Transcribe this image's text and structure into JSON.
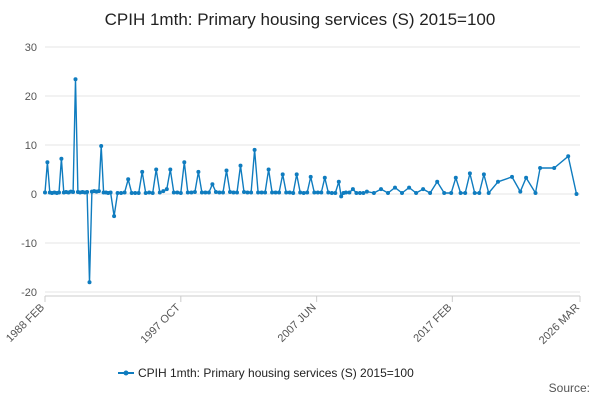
{
  "chart_data": {
    "type": "line",
    "title": "CPIH 1mth: Primary housing services (S) 2015=100",
    "xlabel": "",
    "ylabel": "",
    "ylim": [
      -20,
      30
    ],
    "yticks": [
      30,
      20,
      10,
      0,
      -10,
      -20
    ],
    "xlim": [
      1988.08,
      2026.17
    ],
    "xticks": [
      {
        "label": "1988 FEB",
        "x": 1988.08
      },
      {
        "label": "1997 OCT",
        "x": 1997.75
      },
      {
        "label": "2007 JUN",
        "x": 2007.42
      },
      {
        "label": "2017 FEB",
        "x": 2017.08
      },
      {
        "label": "2026 MAR",
        "x": 2026.17
      }
    ],
    "grid": true,
    "legend": "bottom-center",
    "color": "#0f7cbf",
    "series": [
      {
        "name": "CPIH 1mth: Primary housing services (S) 2015=100",
        "points": [
          [
            1988.08,
            0.3
          ],
          [
            1988.25,
            6.5
          ],
          [
            1988.42,
            0.3
          ],
          [
            1988.58,
            0.2
          ],
          [
            1988.75,
            0.3
          ],
          [
            1988.92,
            0.2
          ],
          [
            1989.08,
            0.3
          ],
          [
            1989.25,
            7.2
          ],
          [
            1989.42,
            0.3
          ],
          [
            1989.58,
            0.4
          ],
          [
            1989.75,
            0.3
          ],
          [
            1989.92,
            0.5
          ],
          [
            1990.08,
            0.4
          ],
          [
            1990.25,
            23.4
          ],
          [
            1990.42,
            0.4
          ],
          [
            1990.58,
            0.3
          ],
          [
            1990.75,
            0.4
          ],
          [
            1990.92,
            0.3
          ],
          [
            1991.08,
            0.4
          ],
          [
            1991.25,
            -18.0
          ],
          [
            1991.42,
            0.5
          ],
          [
            1991.58,
            0.6
          ],
          [
            1991.75,
            0.5
          ],
          [
            1991.92,
            0.6
          ],
          [
            1992.08,
            9.8
          ],
          [
            1992.25,
            0.3
          ],
          [
            1992.42,
            0.3
          ],
          [
            1992.58,
            0.2
          ],
          [
            1992.75,
            0.3
          ],
          [
            1993.0,
            -4.5
          ],
          [
            1993.25,
            0.2
          ],
          [
            1993.5,
            0.2
          ],
          [
            1993.75,
            0.3
          ],
          [
            1994.0,
            3.0
          ],
          [
            1994.25,
            0.2
          ],
          [
            1994.5,
            0.2
          ],
          [
            1994.75,
            0.2
          ],
          [
            1995.0,
            4.5
          ],
          [
            1995.25,
            0.2
          ],
          [
            1995.5,
            0.3
          ],
          [
            1995.75,
            0.2
          ],
          [
            1996.0,
            5.0
          ],
          [
            1996.25,
            0.3
          ],
          [
            1996.5,
            0.6
          ],
          [
            1996.75,
            1.0
          ],
          [
            1997.0,
            5.0
          ],
          [
            1997.25,
            0.3
          ],
          [
            1997.5,
            0.3
          ],
          [
            1997.75,
            0.2
          ],
          [
            1998.0,
            6.5
          ],
          [
            1998.25,
            0.3
          ],
          [
            1998.5,
            0.3
          ],
          [
            1998.75,
            0.4
          ],
          [
            1999.0,
            4.5
          ],
          [
            1999.25,
            0.3
          ],
          [
            1999.5,
            0.3
          ],
          [
            1999.75,
            0.3
          ],
          [
            2000.0,
            2.0
          ],
          [
            2000.25,
            0.4
          ],
          [
            2000.5,
            0.3
          ],
          [
            2000.75,
            0.3
          ],
          [
            2001.0,
            4.8
          ],
          [
            2001.25,
            0.4
          ],
          [
            2001.5,
            0.3
          ],
          [
            2001.75,
            0.3
          ],
          [
            2002.0,
            5.8
          ],
          [
            2002.25,
            0.4
          ],
          [
            2002.5,
            0.3
          ],
          [
            2002.75,
            0.3
          ],
          [
            2003.0,
            9.0
          ],
          [
            2003.25,
            0.3
          ],
          [
            2003.5,
            0.3
          ],
          [
            2003.75,
            0.3
          ],
          [
            2004.0,
            5.0
          ],
          [
            2004.25,
            0.3
          ],
          [
            2004.5,
            0.3
          ],
          [
            2004.75,
            0.3
          ],
          [
            2005.0,
            4.0
          ],
          [
            2005.25,
            0.3
          ],
          [
            2005.5,
            0.3
          ],
          [
            2005.75,
            0.2
          ],
          [
            2006.0,
            4.0
          ],
          [
            2006.25,
            0.3
          ],
          [
            2006.5,
            0.2
          ],
          [
            2006.75,
            0.3
          ],
          [
            2007.0,
            3.5
          ],
          [
            2007.25,
            0.3
          ],
          [
            2007.5,
            0.3
          ],
          [
            2007.75,
            0.3
          ],
          [
            2008.0,
            3.3
          ],
          [
            2008.25,
            0.3
          ],
          [
            2008.5,
            0.2
          ],
          [
            2008.75,
            0.2
          ],
          [
            2009.0,
            2.5
          ],
          [
            2009.17,
            -0.5
          ],
          [
            2009.33,
            0.2
          ],
          [
            2009.5,
            0.3
          ],
          [
            2009.75,
            0.3
          ],
          [
            2010.0,
            1.0
          ],
          [
            2010.25,
            0.2
          ],
          [
            2010.5,
            0.2
          ],
          [
            2010.75,
            0.2
          ],
          [
            2011.0,
            0.5
          ],
          [
            2011.5,
            0.2
          ],
          [
            2012.0,
            1.0
          ],
          [
            2012.5,
            0.2
          ],
          [
            2013.0,
            1.3
          ],
          [
            2013.5,
            0.2
          ],
          [
            2014.0,
            1.3
          ],
          [
            2014.5,
            0.2
          ],
          [
            2015.0,
            1.0
          ],
          [
            2015.5,
            0.2
          ],
          [
            2016.0,
            2.5
          ],
          [
            2016.5,
            0.2
          ],
          [
            2017.0,
            0.2
          ],
          [
            2017.33,
            3.3
          ],
          [
            2017.67,
            0.2
          ],
          [
            2018.0,
            0.2
          ],
          [
            2018.33,
            4.2
          ],
          [
            2018.67,
            0.2
          ],
          [
            2019.0,
            0.2
          ],
          [
            2019.33,
            4.0
          ],
          [
            2019.67,
            0.2
          ],
          [
            2020.33,
            2.5
          ],
          [
            2021.33,
            3.5
          ],
          [
            2021.92,
            0.5
          ],
          [
            2022.33,
            3.3
          ],
          [
            2023.0,
            0.2
          ],
          [
            2023.33,
            5.3
          ],
          [
            2024.33,
            5.3
          ],
          [
            2025.33,
            7.7
          ],
          [
            2025.92,
            0.0
          ]
        ]
      }
    ]
  },
  "legend": {
    "label": "CPIH 1mth: Primary housing services (S) 2015=100"
  },
  "source": {
    "label": "Source:"
  }
}
